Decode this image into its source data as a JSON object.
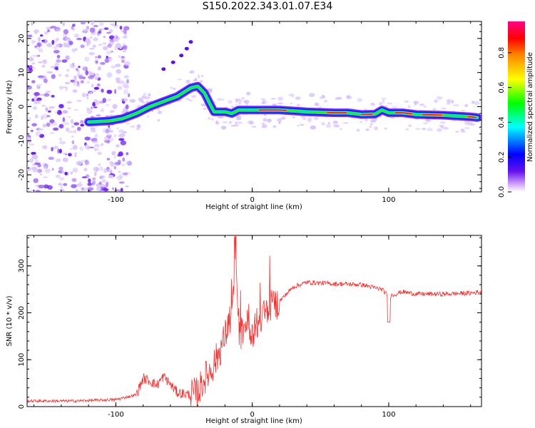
{
  "title": "S150.2022.343.01.07.E34",
  "chart_data": [
    {
      "type": "heatmap",
      "xlabel": "Height of straight line (km)",
      "ylabel": "Frequency (Hz)",
      "xlim": [
        -165,
        168
      ],
      "ylim": [
        -25,
        25
      ],
      "xticks": [
        "-100",
        "0",
        "100"
      ],
      "yticks": [
        "-20",
        "-10",
        "0",
        "10",
        "20"
      ],
      "colorbar": {
        "label": "Normalized spectral amplitude",
        "ticks": [
          "0.0",
          "0.2",
          "0.4",
          "0.6",
          "0.8"
        ],
        "range": [
          0,
          0.98
        ]
      },
      "ridge": {
        "x": [
          -120,
          -105,
          -95,
          -85,
          -75,
          -65,
          -55,
          -45,
          -40,
          -35,
          -30,
          -28,
          -20,
          -15,
          -10,
          0,
          20,
          40,
          60,
          70,
          80,
          90,
          95,
          100,
          110,
          120,
          140,
          160,
          165
        ],
        "y": [
          -4.5,
          -4.2,
          -3.5,
          -2,
          0,
          1.5,
          3,
          5.5,
          6,
          4,
          0,
          -1.5,
          -1.5,
          -2,
          -1,
          -1,
          -1,
          -1.5,
          -1.8,
          -1.8,
          -2.3,
          -2.2,
          -1,
          -1.8,
          -1.8,
          -2.3,
          -2.5,
          -3,
          -3.2
        ]
      },
      "side_branch": {
        "x": [
          -65,
          -58,
          -52,
          -48,
          -45
        ],
        "y": [
          11,
          13,
          15,
          17,
          19
        ]
      }
    },
    {
      "type": "line",
      "xlabel": "Height of straight line (km)",
      "ylabel": "SNR (10 * v/v)",
      "xlim": [
        -165,
        168
      ],
      "ylim": [
        0,
        365
      ],
      "xticks": [
        "-100",
        "0",
        "100"
      ],
      "yticks": [
        "0",
        "100",
        "200",
        "300"
      ],
      "series": [
        {
          "color": "#ee3333",
          "x": [
            -165,
            -130,
            -100,
            -85,
            -80,
            -75,
            -70,
            -65,
            -55,
            -45,
            -40,
            -35,
            -30,
            -25,
            -20,
            -15,
            -12,
            -10,
            -5,
            0,
            10,
            20,
            30,
            40,
            60,
            80,
            95,
            100,
            110,
            120,
            140,
            160,
            168
          ],
          "y": [
            12,
            12,
            15,
            25,
            60,
            55,
            45,
            65,
            30,
            25,
            30,
            60,
            80,
            110,
            150,
            200,
            300,
            140,
            180,
            160,
            200,
            225,
            255,
            265,
            262,
            260,
            250,
            235,
            245,
            240,
            240,
            242,
            245
          ]
        }
      ]
    }
  ]
}
